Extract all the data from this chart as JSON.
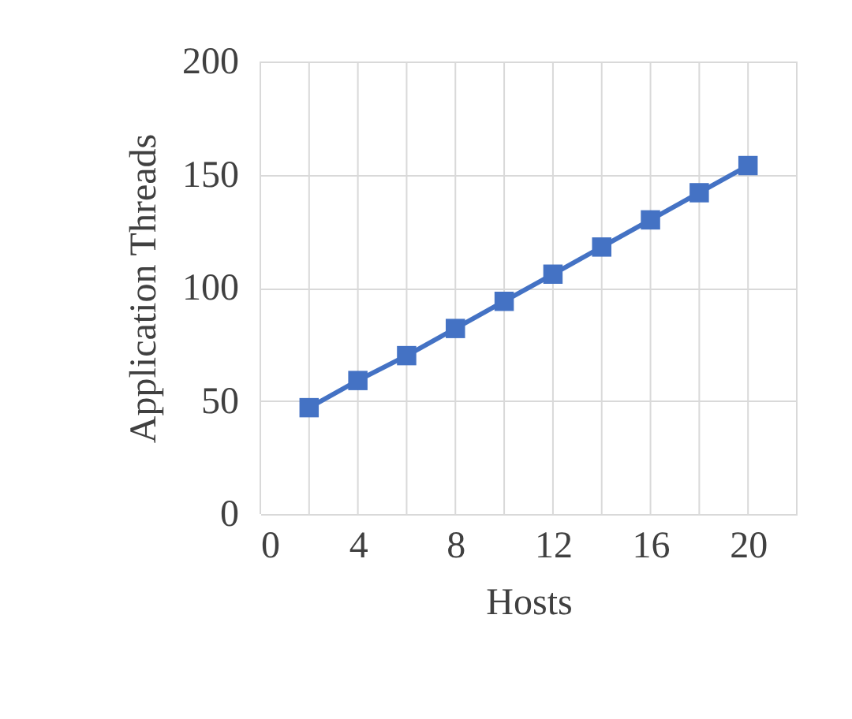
{
  "chart_data": {
    "type": "line",
    "xlabel": "Hosts",
    "ylabel": "Application Threads",
    "x": [
      2,
      4,
      6,
      8,
      10,
      12,
      14,
      16,
      18,
      20
    ],
    "series": [
      {
        "color": "#4472c4",
        "values": [
          47,
          59,
          70,
          82,
          94,
          106,
          118,
          130,
          142,
          154
        ]
      }
    ],
    "xlim": [
      0,
      22
    ],
    "xticks": [
      0,
      {
        "value": 2,
        "label": null
      },
      4,
      {
        "value": 6,
        "label": null
      },
      8,
      {
        "value": 10,
        "label": null
      },
      12,
      {
        "value": 14,
        "label": null
      },
      16,
      {
        "value": 18,
        "label": null
      },
      20,
      {
        "value": 22,
        "label": null
      }
    ],
    "ylim": [
      0,
      200
    ],
    "yticks": [
      0,
      50,
      100,
      150,
      200
    ],
    "grid": true,
    "marker": "square",
    "line_style": "solid",
    "legend": false
  }
}
